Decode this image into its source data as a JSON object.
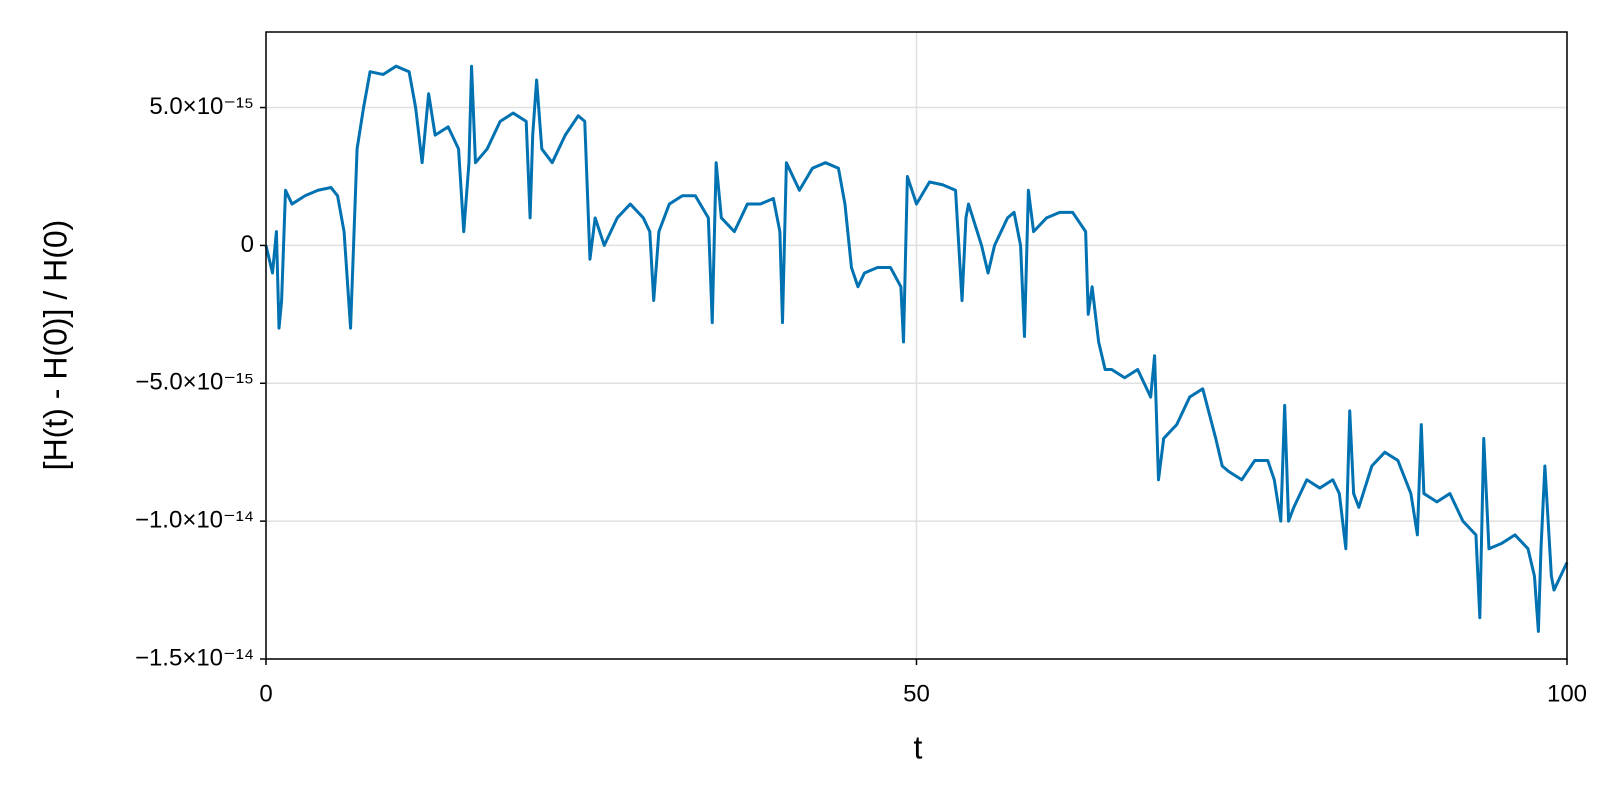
{
  "chart_data": {
    "type": "line",
    "x_label": "t",
    "y_label": "[H(t) - H(0)] / H(0)",
    "x": [
      0,
      0.5,
      0.8,
      1,
      1.2,
      1.5,
      2,
      3,
      4,
      5,
      5.5,
      6,
      6.5,
      7,
      7.5,
      8,
      9,
      10,
      11,
      11.5,
      12,
      12.5,
      13,
      14,
      14.8,
      15.2,
      15.6,
      15.8,
      16.1,
      17,
      18,
      19,
      20,
      20.3,
      20.5,
      20.8,
      21.2,
      22,
      23,
      24,
      24.5,
      24.9,
      25.3,
      26,
      27,
      28,
      29,
      29.5,
      29.8,
      30.2,
      31,
      32,
      33,
      34,
      34.3,
      34.6,
      35,
      36,
      37,
      38,
      39,
      39.5,
      39.7,
      40,
      41,
      42,
      43,
      44,
      44.5,
      45,
      45.5,
      46,
      47,
      48,
      48.8,
      49,
      49.3,
      50,
      51,
      52,
      53,
      53.5,
      53.8,
      54,
      55,
      55.5,
      56,
      57,
      57.5,
      58,
      58.3,
      58.6,
      59,
      60,
      61,
      62,
      63,
      63.2,
      63.5,
      64,
      64.5,
      65,
      66,
      67,
      68,
      68.3,
      68.6,
      69,
      70,
      71,
      72,
      73,
      73.5,
      74,
      75,
      76,
      77,
      77.5,
      78,
      78.3,
      78.6,
      79,
      80,
      81,
      82,
      82.5,
      83,
      83.3,
      83.6,
      84,
      85,
      86,
      87,
      88,
      88.5,
      88.8,
      89,
      90,
      91,
      92,
      93,
      93.3,
      93.6,
      94,
      95,
      96,
      97,
      97.5,
      97.8,
      98,
      98.3,
      98.8,
      99,
      100
    ],
    "series": [
      {
        "name": "H",
        "color": "#0072b2",
        "values": [
          0,
          -1e-15,
          5e-16,
          -3e-15,
          -2e-15,
          2e-15,
          1.5e-15,
          1.8e-15,
          2e-15,
          2.1e-15,
          1.8e-15,
          5e-16,
          -3e-15,
          3.5e-15,
          5e-15,
          6.3e-15,
          6.2e-15,
          6.5e-15,
          6.3e-15,
          5e-15,
          3e-15,
          5.5e-15,
          4e-15,
          4.3e-15,
          3.5e-15,
          5e-16,
          3e-15,
          6.5e-15,
          3e-15,
          3.5e-15,
          4.5e-15,
          4.8e-15,
          4.5e-15,
          1e-15,
          4e-15,
          6e-15,
          3.5e-15,
          3e-15,
          4e-15,
          4.7e-15,
          4.5e-15,
          -5e-16,
          1e-15,
          0,
          1e-15,
          1.5e-15,
          1e-15,
          5e-16,
          -2e-15,
          5e-16,
          1.5e-15,
          1.8e-15,
          1.8e-15,
          1e-15,
          -2.8e-15,
          3e-15,
          1e-15,
          5e-16,
          1.5e-15,
          1.5e-15,
          1.7e-15,
          5e-16,
          -2.8e-15,
          3e-15,
          2e-15,
          2.8e-15,
          3e-15,
          2.8e-15,
          1.5e-15,
          -8e-16,
          -1.5e-15,
          -1e-15,
          -8e-16,
          -8e-16,
          -1.5e-15,
          -3.5e-15,
          2.5e-15,
          1.5e-15,
          2.3e-15,
          2.2e-15,
          2e-15,
          -2e-15,
          1e-15,
          1.5e-15,
          0,
          -1e-15,
          0,
          1e-15,
          1.2e-15,
          0,
          -3.3e-15,
          2e-15,
          5e-16,
          1e-15,
          1.2e-15,
          1.2e-15,
          5e-16,
          -2.5e-15,
          -1.5e-15,
          -3.5e-15,
          -4.5e-15,
          -4.5e-15,
          -4.8e-15,
          -4.5e-15,
          -5.5e-15,
          -4e-15,
          -8.5e-15,
          -7e-15,
          -6.5e-15,
          -5.5e-15,
          -5.2e-15,
          -7e-15,
          -8e-15,
          -8.2e-15,
          -8.5e-15,
          -7.8e-15,
          -7.8e-15,
          -8.5e-15,
          -1e-14,
          -5.8e-15,
          -1e-14,
          -9.5e-15,
          -8.5e-15,
          -8.8e-15,
          -8.5e-15,
          -9e-15,
          -1.1e-14,
          -6e-15,
          -9e-15,
          -9.5e-15,
          -8e-15,
          -7.5e-15,
          -7.8e-15,
          -9e-15,
          -1.05e-14,
          -6.5e-15,
          -9e-15,
          -9.3e-15,
          -9e-15,
          -1e-14,
          -1.05e-14,
          -1.35e-14,
          -7e-15,
          -1.1e-14,
          -1.08e-14,
          -1.05e-14,
          -1.1e-14,
          -1.2e-14,
          -1.4e-14,
          -1.1e-14,
          -8e-15,
          -1.2e-14,
          -1.25e-14,
          -1.15e-14
        ]
      }
    ],
    "xlim": [
      0,
      100
    ],
    "xticks": [
      0,
      50,
      100
    ],
    "ylim": [
      -1.5e-14,
      7.74e-15
    ],
    "yticks": [
      {
        "value": 5e-15,
        "label": "5.0×10⁻¹⁵"
      },
      0,
      {
        "value": -5e-15,
        "label": "−5.0×10⁻¹⁵"
      },
      {
        "value": -1e-14,
        "label": "−1.0×10⁻¹⁴"
      },
      {
        "value": -1.5e-14,
        "label": "−1.5×10⁻¹⁴"
      }
    ],
    "grid": true
  }
}
